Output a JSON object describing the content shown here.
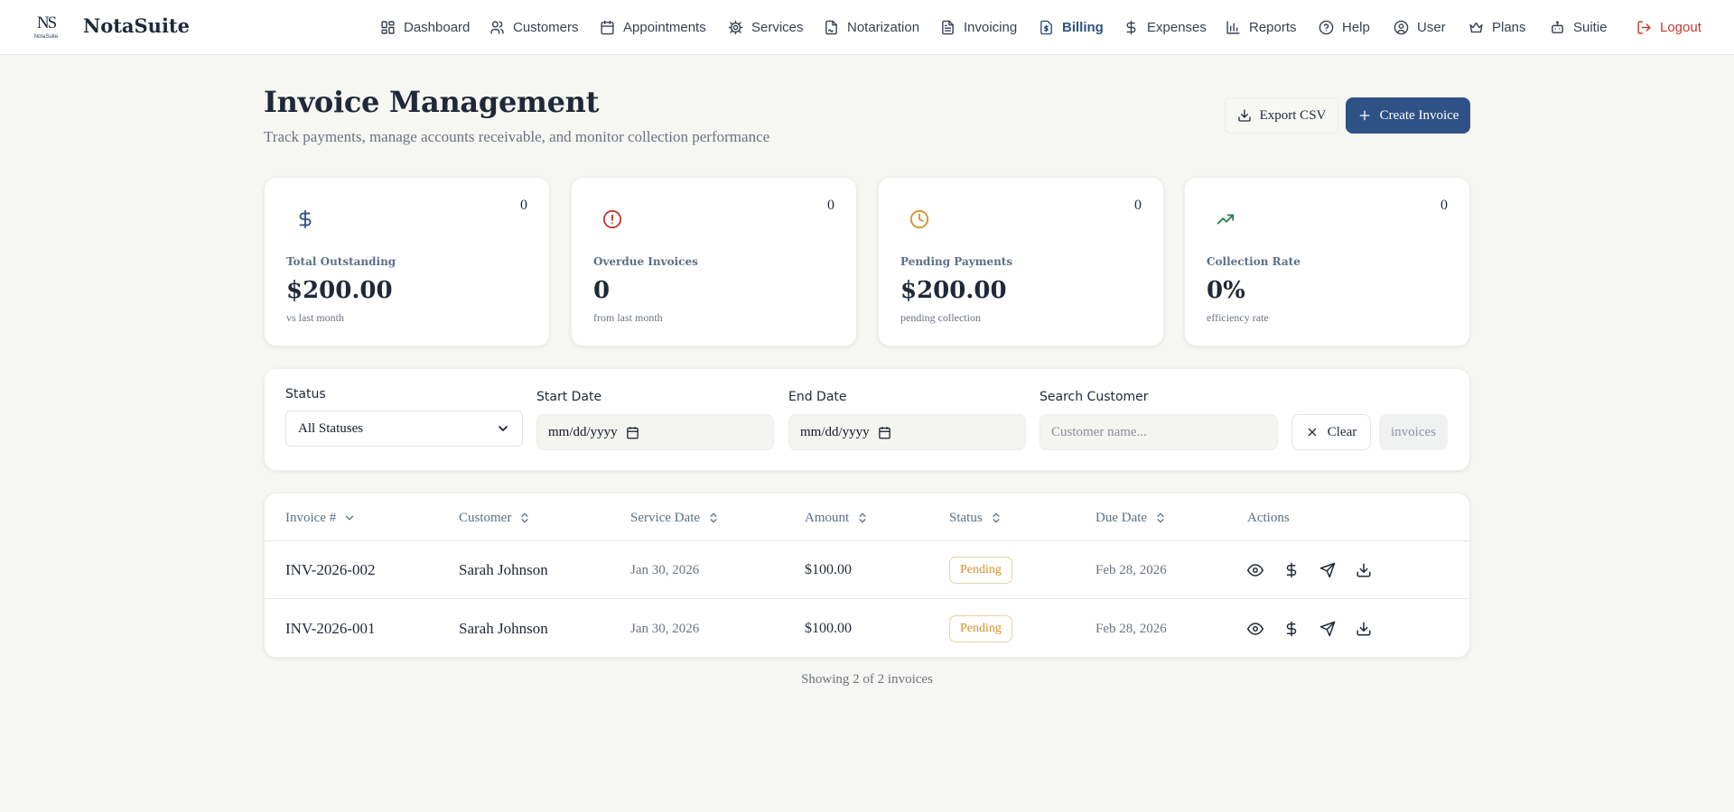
{
  "brand": {
    "logo_mono": "NS",
    "logo_sub": "NotaSuite",
    "name": "NotaSuite"
  },
  "nav": {
    "items": [
      {
        "label": "Dashboard",
        "icon": "dashboard-icon"
      },
      {
        "label": "Customers",
        "icon": "users-icon"
      },
      {
        "label": "Appointments",
        "icon": "calendar-icon"
      },
      {
        "label": "Services",
        "icon": "gear-icon"
      },
      {
        "label": "Notarization",
        "icon": "file-signature-icon"
      },
      {
        "label": "Invoicing",
        "icon": "file-text-icon"
      },
      {
        "label": "Billing",
        "icon": "receipt-dollar-icon",
        "active": true
      },
      {
        "label": "Expenses",
        "icon": "dollar-icon"
      },
      {
        "label": "Reports",
        "icon": "bar-chart-icon"
      },
      {
        "label": "Help",
        "icon": "help-circle-icon"
      },
      {
        "label": "User",
        "icon": "user-circle-icon"
      },
      {
        "label": "Plans",
        "icon": "crown-icon"
      },
      {
        "label": "Suitie",
        "icon": "bot-icon"
      }
    ],
    "logout": "Logout"
  },
  "header": {
    "title": "Invoice Management",
    "subtitle": "Track payments, manage accounts receivable, and monitor collection performance",
    "export_label": "Export CSV",
    "create_label": "Create Invoice"
  },
  "cards": [
    {
      "label": "Total Outstanding",
      "value": "$200.00",
      "note": "vs last month",
      "count": "0",
      "icon": "dollar-icon",
      "color": "#2f5286"
    },
    {
      "label": "Overdue Invoices",
      "value": "0",
      "note": "from last month",
      "count": "0",
      "icon": "alert-circle-icon",
      "color": "#c0392b"
    },
    {
      "label": "Pending Payments",
      "value": "$200.00",
      "note": "pending collection",
      "count": "0",
      "icon": "clock-icon",
      "color": "#d4912a"
    },
    {
      "label": "Collection Rate",
      "value": "0%",
      "note": "efficiency rate",
      "count": "0",
      "icon": "trending-up-icon",
      "color": "#2e7d4f"
    }
  ],
  "filters": {
    "status_label": "Status",
    "status_value": "All Statuses",
    "start_label": "Start Date",
    "start_value": "mm/dd/yyyy",
    "end_label": "End Date",
    "end_value": "mm/dd/yyyy",
    "search_label": "Search Customer",
    "search_placeholder": "Customer name...",
    "clear_label": "Clear",
    "count_chip": "invoices"
  },
  "table": {
    "columns": [
      "Invoice #",
      "Customer",
      "Service Date",
      "Amount",
      "Status",
      "Due Date",
      "Actions"
    ],
    "rows": [
      {
        "invoice": "INV-2026-002",
        "customer": "Sarah Johnson",
        "service_date": "Jan 30, 2026",
        "amount": "$100.00",
        "status": "Pending",
        "due_date": "Feb 28, 2026"
      },
      {
        "invoice": "INV-2026-001",
        "customer": "Sarah Johnson",
        "service_date": "Jan 30, 2026",
        "amount": "$100.00",
        "status": "Pending",
        "due_date": "Feb 28, 2026"
      }
    ]
  },
  "footer": {
    "showing": "Showing 2 of 2 invoices"
  },
  "colors": {
    "accent": "#2f5286",
    "logout": "#c0392b",
    "pending": "#d4912a",
    "background": "#f6f6f3"
  }
}
